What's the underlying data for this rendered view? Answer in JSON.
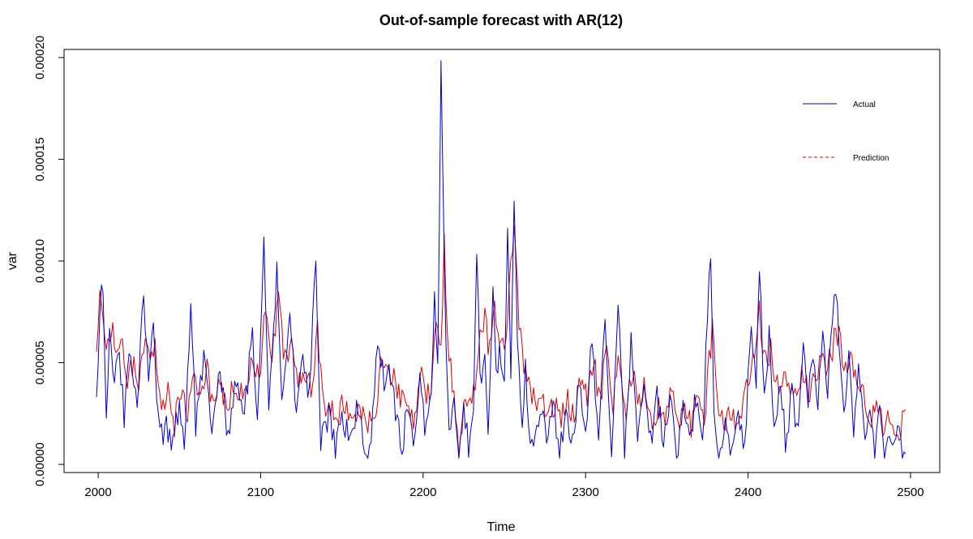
{
  "chart_data": {
    "type": "line",
    "title": "Out-of-sample forecast with AR(12)",
    "xlabel": "Time",
    "ylabel": "var",
    "xlim": [
      1979,
      2518
    ],
    "ylim": [
      -4e-06,
      0.000204
    ],
    "x_ticks": [
      2000,
      2100,
      2200,
      2300,
      2400,
      2500
    ],
    "x_tick_labels": [
      "2000",
      "2100",
      "2200",
      "2300",
      "2400",
      "2500"
    ],
    "y_ticks": [
      0,
      5e-05,
      0.0001,
      0.00015,
      0.0002
    ],
    "y_tick_labels": [
      "0.00000",
      "0.00005",
      "0.00010",
      "0.00015",
      "0.00020"
    ],
    "grid": false,
    "legend": {
      "placement": "top-right",
      "boxed": false
    },
    "x": {
      "start": 1999,
      "end": 2497,
      "step": 1
    },
    "series": [
      {
        "name": "Actual",
        "color": "#0000cc",
        "dash": "solid",
        "anchors": [
          [
            1999,
            3.5e-05
          ],
          [
            2001,
            7.5e-05
          ],
          [
            2003,
            9e-05
          ],
          [
            2005,
            2.2e-05
          ],
          [
            2007,
            7e-05
          ],
          [
            2010,
            4e-05
          ],
          [
            2013,
            5.5e-05
          ],
          [
            2016,
            2.5e-05
          ],
          [
            2020,
            5.5e-05
          ],
          [
            2024,
            3e-05
          ],
          [
            2028,
            8.5e-05
          ],
          [
            2031,
            4e-05
          ],
          [
            2034,
            6.5e-05
          ],
          [
            2038,
            1.2e-05
          ],
          [
            2042,
            2e-05
          ],
          [
            2046,
            8e-06
          ],
          [
            2050,
            3e-05
          ],
          [
            2053,
            1e-05
          ],
          [
            2057,
            7.7e-05
          ],
          [
            2060,
            2e-05
          ],
          [
            2065,
            5.5e-05
          ],
          [
            2070,
            1.2e-05
          ],
          [
            2075,
            4.5e-05
          ],
          [
            2080,
            1e-05
          ],
          [
            2085,
            4.5e-05
          ],
          [
            2090,
            2.5e-05
          ],
          [
            2095,
            6.5e-05
          ],
          [
            2098,
            2.5e-05
          ],
          [
            2102,
            0.000108
          ],
          [
            2105,
            3e-05
          ],
          [
            2110,
            9.5e-05
          ],
          [
            2113,
            2.5e-05
          ],
          [
            2118,
            7.5e-05
          ],
          [
            2122,
            2.5e-05
          ],
          [
            2126,
            5e-05
          ],
          [
            2130,
            3.5e-05
          ],
          [
            2134,
            0.0001
          ],
          [
            2137,
            1e-05
          ],
          [
            2142,
            2.5e-05
          ],
          [
            2146,
            8e-06
          ],
          [
            2150,
            2.5e-05
          ],
          [
            2155,
            1e-05
          ],
          [
            2160,
            3e-05
          ],
          [
            2164,
            8e-06
          ],
          [
            2168,
            1e-05
          ],
          [
            2172,
            6.5e-05
          ],
          [
            2176,
            4e-05
          ],
          [
            2180,
            4.5e-05
          ],
          [
            2184,
            2e-05
          ],
          [
            2187,
            6e-06
          ],
          [
            2190,
            2.5e-05
          ],
          [
            2194,
            1e-05
          ],
          [
            2198,
            4e-05
          ],
          [
            2202,
            1.5e-05
          ],
          [
            2205,
            4e-05
          ],
          [
            2207,
            8.5e-05
          ],
          [
            2209,
            4.5e-05
          ],
          [
            2211,
            0.000195
          ],
          [
            2212,
            0.00015
          ],
          [
            2214,
            6e-05
          ],
          [
            2216,
            2e-05
          ],
          [
            2219,
            3e-05
          ],
          [
            2222,
            5e-06
          ],
          [
            2225,
            2.5e-05
          ],
          [
            2228,
            1e-05
          ],
          [
            2231,
            3e-05
          ],
          [
            2233,
            0.000108
          ],
          [
            2235,
            4e-05
          ],
          [
            2238,
            6e-05
          ],
          [
            2240,
            1.5e-05
          ],
          [
            2243,
            8.5e-05
          ],
          [
            2245,
            4e-05
          ],
          [
            2247,
            5.5e-05
          ],
          [
            2250,
            3.5e-05
          ],
          [
            2252,
            0.000115
          ],
          [
            2254,
            4e-05
          ],
          [
            2256,
            0.000133
          ],
          [
            2258,
            6e-05
          ],
          [
            2261,
            2e-05
          ],
          [
            2263,
            5e-05
          ],
          [
            2265,
            1.5e-05
          ],
          [
            2268,
            6e-06
          ],
          [
            2272,
            3e-05
          ],
          [
            2276,
            1e-05
          ],
          [
            2280,
            2.8e-05
          ],
          [
            2284,
            6e-06
          ],
          [
            2288,
            2.8e-05
          ],
          [
            2292,
            1e-05
          ],
          [
            2296,
            4e-05
          ],
          [
            2300,
            1.5e-05
          ],
          [
            2304,
            6.5e-05
          ],
          [
            2308,
            1.2e-05
          ],
          [
            2312,
            7e-05
          ],
          [
            2316,
            1e-05
          ],
          [
            2320,
            8e-05
          ],
          [
            2324,
            8e-06
          ],
          [
            2328,
            6e-05
          ],
          [
            2332,
            1.5e-05
          ],
          [
            2336,
            4e-05
          ],
          [
            2340,
            1e-05
          ],
          [
            2344,
            3.5e-05
          ],
          [
            2348,
            1e-05
          ],
          [
            2352,
            3.5e-05
          ],
          [
            2356,
            5e-06
          ],
          [
            2360,
            3e-05
          ],
          [
            2364,
            1e-05
          ],
          [
            2368,
            3.5e-05
          ],
          [
            2372,
            8e-06
          ],
          [
            2375,
            7.5e-05
          ],
          [
            2377,
            0.000105
          ],
          [
            2379,
            2e-05
          ],
          [
            2382,
            3e-06
          ],
          [
            2386,
            2e-05
          ],
          [
            2390,
            8e-06
          ],
          [
            2394,
            2e-05
          ],
          [
            2398,
            1e-05
          ],
          [
            2402,
            7e-05
          ],
          [
            2405,
            4e-05
          ],
          [
            2407,
            9.8e-05
          ],
          [
            2410,
            3e-05
          ],
          [
            2413,
            6.5e-05
          ],
          [
            2416,
            1.5e-05
          ],
          [
            2420,
            4.5e-05
          ],
          [
            2423,
            1e-05
          ],
          [
            2427,
            3.5e-05
          ],
          [
            2430,
            1.5e-05
          ],
          [
            2434,
            5.5e-05
          ],
          [
            2437,
            3e-05
          ],
          [
            2440,
            5.5e-05
          ],
          [
            2443,
            3e-05
          ],
          [
            2446,
            6e-05
          ],
          [
            2449,
            3.5e-05
          ],
          [
            2452,
            7e-05
          ],
          [
            2454,
            8.5e-05
          ],
          [
            2457,
            5e-05
          ],
          [
            2459,
            2e-05
          ],
          [
            2462,
            6e-05
          ],
          [
            2465,
            1e-05
          ],
          [
            2468,
            5e-05
          ],
          [
            2472,
            1.5e-05
          ],
          [
            2475,
            3e-05
          ],
          [
            2478,
            8e-06
          ],
          [
            2481,
            2.5e-05
          ],
          [
            2484,
            5e-06
          ],
          [
            2487,
            1.2e-05
          ],
          [
            2490,
            8e-06
          ],
          [
            2493,
            1.5e-05
          ],
          [
            2495,
            8e-06
          ],
          [
            2497,
            1.2e-05
          ]
        ]
      },
      {
        "name": "Prediction",
        "color": "#dd0000",
        "dash": "dashed",
        "anchors": [
          [
            1999,
            6e-05
          ],
          [
            2001,
            8e-05
          ],
          [
            2003,
            7.5e-05
          ],
          [
            2006,
            5.5e-05
          ],
          [
            2009,
            7e-05
          ],
          [
            2012,
            5e-05
          ],
          [
            2015,
            6e-05
          ],
          [
            2018,
            4e-05
          ],
          [
            2021,
            5e-05
          ],
          [
            2025,
            4e-05
          ],
          [
            2029,
            6.5e-05
          ],
          [
            2032,
            5e-05
          ],
          [
            2035,
            6e-05
          ],
          [
            2039,
            3e-05
          ],
          [
            2043,
            3.5e-05
          ],
          [
            2047,
            2e-05
          ],
          [
            2051,
            3.5e-05
          ],
          [
            2055,
            2.5e-05
          ],
          [
            2059,
            4.5e-05
          ],
          [
            2063,
            3e-05
          ],
          [
            2067,
            4.5e-05
          ],
          [
            2071,
            2.5e-05
          ],
          [
            2075,
            4e-05
          ],
          [
            2080,
            3e-05
          ],
          [
            2085,
            4e-05
          ],
          [
            2090,
            3e-05
          ],
          [
            2095,
            5e-05
          ],
          [
            2099,
            4e-05
          ],
          [
            2103,
            7.8e-05
          ],
          [
            2107,
            5.5e-05
          ],
          [
            2111,
            8e-05
          ],
          [
            2115,
            5e-05
          ],
          [
            2119,
            6e-05
          ],
          [
            2123,
            4e-05
          ],
          [
            2127,
            4.5e-05
          ],
          [
            2131,
            3.8e-05
          ],
          [
            2135,
            6.5e-05
          ],
          [
            2139,
            3e-05
          ],
          [
            2143,
            3e-05
          ],
          [
            2147,
            2e-05
          ],
          [
            2151,
            3e-05
          ],
          [
            2156,
            2e-05
          ],
          [
            2161,
            3e-05
          ],
          [
            2166,
            2e-05
          ],
          [
            2170,
            2e-05
          ],
          [
            2174,
            5e-05
          ],
          [
            2178,
            4.5e-05
          ],
          [
            2182,
            4.5e-05
          ],
          [
            2186,
            3e-05
          ],
          [
            2190,
            3e-05
          ],
          [
            2194,
            2e-05
          ],
          [
            2198,
            4.5e-05
          ],
          [
            2202,
            3e-05
          ],
          [
            2205,
            4e-05
          ],
          [
            2208,
            6.5e-05
          ],
          [
            2211,
            6e-05
          ],
          [
            2213,
            0.000108
          ],
          [
            2215,
            6e-05
          ],
          [
            2218,
            4e-05
          ],
          [
            2222,
            1e-05
          ],
          [
            2226,
            3e-05
          ],
          [
            2230,
            2.5e-05
          ],
          [
            2234,
            6e-05
          ],
          [
            2238,
            7e-05
          ],
          [
            2241,
            5.5e-05
          ],
          [
            2244,
            8e-05
          ],
          [
            2247,
            6e-05
          ],
          [
            2250,
            6e-05
          ],
          [
            2253,
            8.5e-05
          ],
          [
            2256,
            0.00012
          ],
          [
            2259,
            7e-05
          ],
          [
            2262,
            5e-05
          ],
          [
            2265,
            4e-05
          ],
          [
            2269,
            3e-05
          ],
          [
            2273,
            3e-05
          ],
          [
            2277,
            2.5e-05
          ],
          [
            2281,
            3e-05
          ],
          [
            2285,
            2.5e-05
          ],
          [
            2289,
            3e-05
          ],
          [
            2293,
            2.5e-05
          ],
          [
            2297,
            4.5e-05
          ],
          [
            2301,
            3e-05
          ],
          [
            2305,
            5e-05
          ],
          [
            2309,
            3e-05
          ],
          [
            2313,
            6e-05
          ],
          [
            2317,
            3e-05
          ],
          [
            2321,
            5.5e-05
          ],
          [
            2325,
            2.5e-05
          ],
          [
            2329,
            4.5e-05
          ],
          [
            2333,
            3e-05
          ],
          [
            2337,
            4e-05
          ],
          [
            2341,
            2e-05
          ],
          [
            2345,
            3e-05
          ],
          [
            2349,
            2e-05
          ],
          [
            2353,
            3.5e-05
          ],
          [
            2357,
            1.5e-05
          ],
          [
            2361,
            3e-05
          ],
          [
            2365,
            2e-05
          ],
          [
            2369,
            3.5e-05
          ],
          [
            2373,
            2e-05
          ],
          [
            2376,
            5e-05
          ],
          [
            2378,
            6.5e-05
          ],
          [
            2381,
            3.5e-05
          ],
          [
            2385,
            1.5e-05
          ],
          [
            2389,
            2.5e-05
          ],
          [
            2393,
            2e-05
          ],
          [
            2397,
            3e-05
          ],
          [
            2401,
            4e-05
          ],
          [
            2404,
            5.5e-05
          ],
          [
            2407,
            7.5e-05
          ],
          [
            2410,
            5e-05
          ],
          [
            2414,
            5.5e-05
          ],
          [
            2418,
            4e-05
          ],
          [
            2422,
            4.5e-05
          ],
          [
            2426,
            3.5e-05
          ],
          [
            2430,
            3.5e-05
          ],
          [
            2434,
            4.5e-05
          ],
          [
            2438,
            3.5e-05
          ],
          [
            2442,
            4.5e-05
          ],
          [
            2446,
            5e-05
          ],
          [
            2450,
            5e-05
          ],
          [
            2453,
            6e-05
          ],
          [
            2456,
            6.5e-05
          ],
          [
            2459,
            4e-05
          ],
          [
            2463,
            5.5e-05
          ],
          [
            2467,
            3.5e-05
          ],
          [
            2471,
            3.5e-05
          ],
          [
            2475,
            2.5e-05
          ],
          [
            2479,
            2.5e-05
          ],
          [
            2483,
            2e-05
          ],
          [
            2487,
            2.5e-05
          ],
          [
            2491,
            2e-05
          ],
          [
            2494,
            1.8e-05
          ],
          [
            2497,
            2.5e-05
          ]
        ]
      }
    ]
  }
}
